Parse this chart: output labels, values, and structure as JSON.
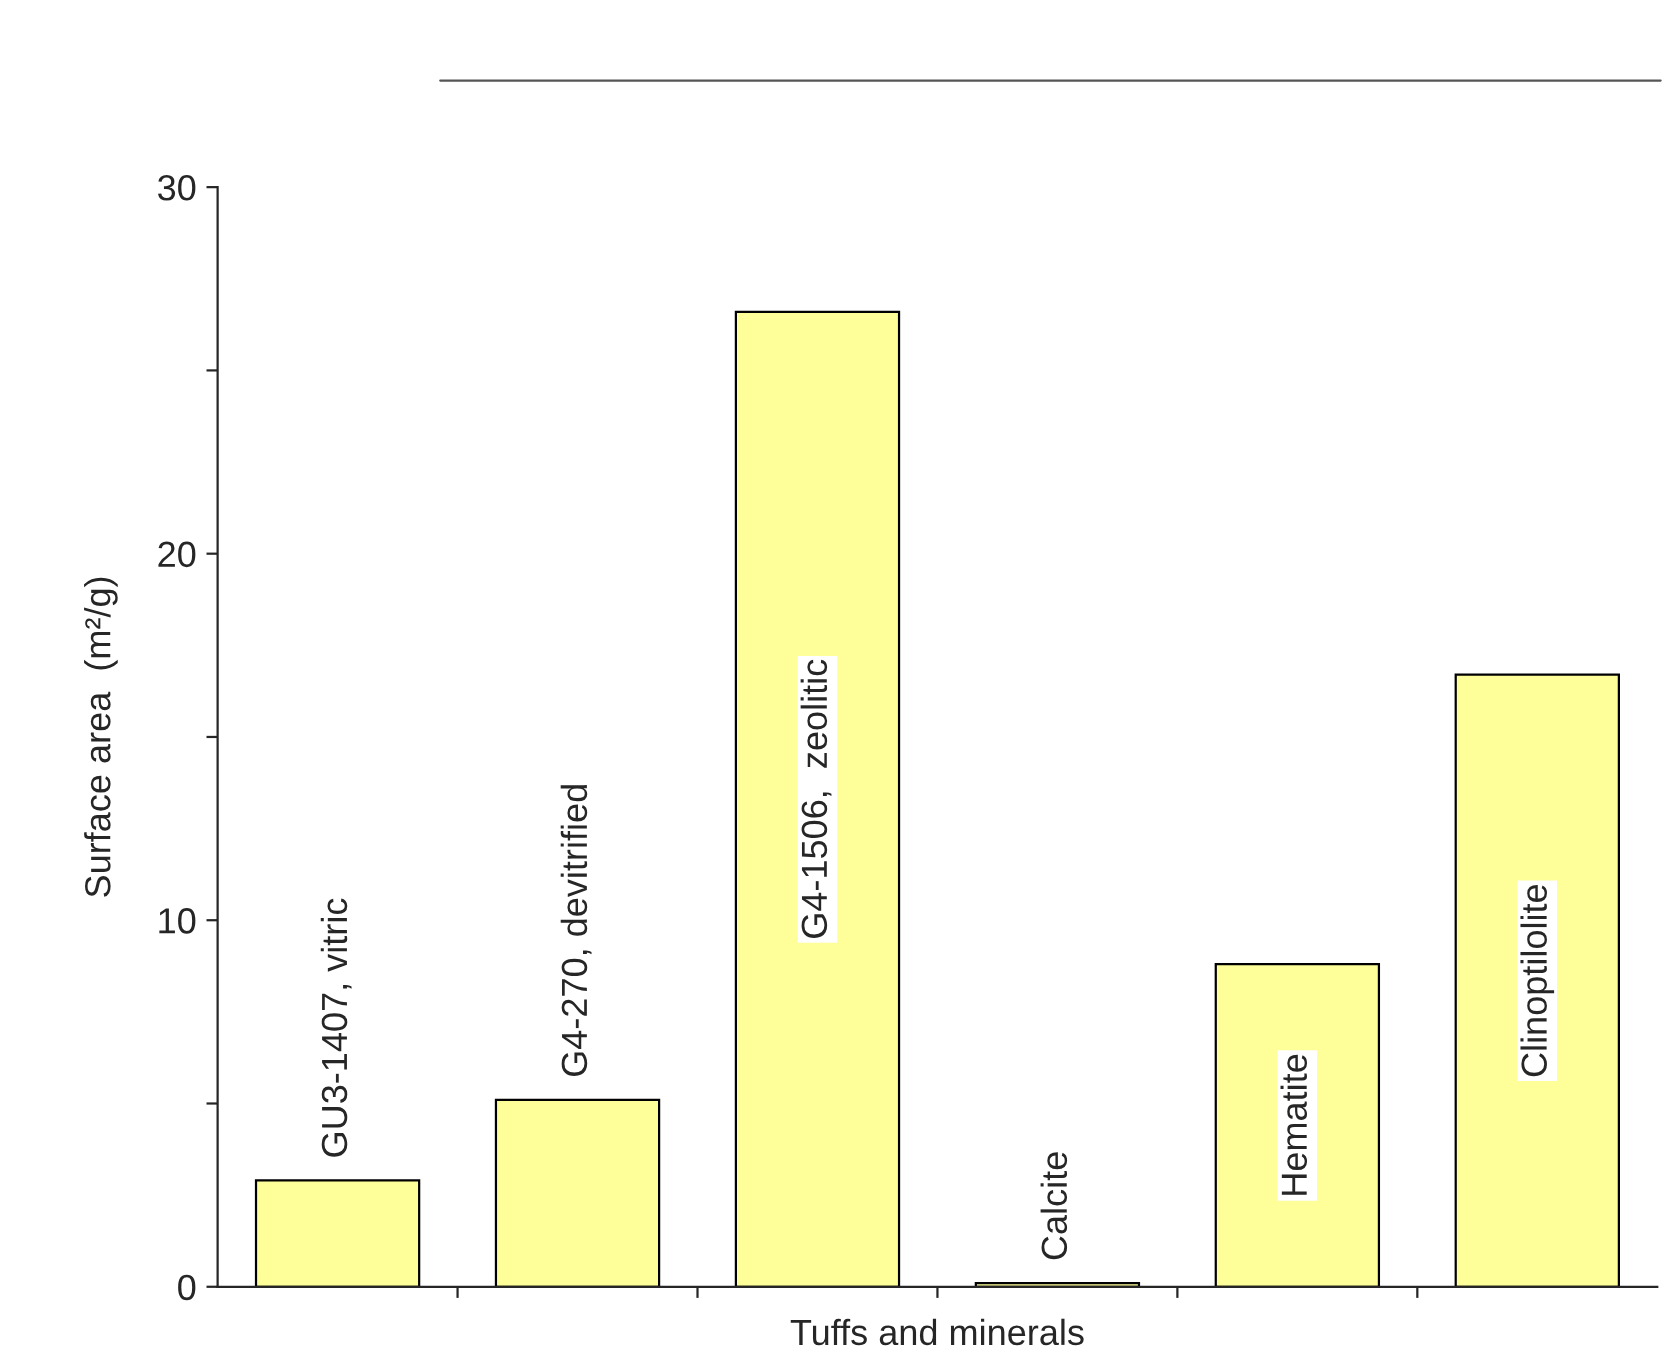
{
  "chart_data": {
    "type": "bar",
    "xlabel": "Tuffs and minerals",
    "ylabel": "Surface area  (m²/g)",
    "categories": [
      "GU3-1407, vitric",
      "G4-270, devitrified",
      "G4-1506,  zeolitic",
      "Calcite",
      "Hematite",
      "Clinoptilolite"
    ],
    "values": [
      2.9,
      5.1,
      26.6,
      0.1,
      8.8,
      16.7
    ],
    "color": "#ffff99",
    "ylim": [
      0,
      30
    ],
    "yticks": [
      0,
      {
        "value": 5,
        "label": null
      },
      10,
      {
        "value": 15,
        "label": null
      },
      20,
      {
        "value": 25,
        "label": null
      },
      30
    ],
    "grid": false,
    "legend": false
  }
}
